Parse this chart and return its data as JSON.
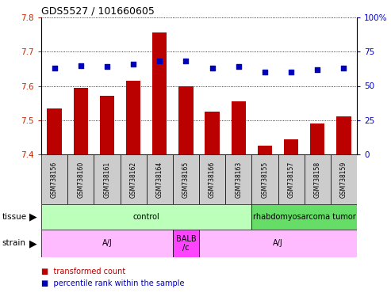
{
  "title": "GDS5527 / 101660605",
  "samples": [
    "GSM738156",
    "GSM738160",
    "GSM738161",
    "GSM738162",
    "GSM738164",
    "GSM738165",
    "GSM738166",
    "GSM738163",
    "GSM738155",
    "GSM738157",
    "GSM738158",
    "GSM738159"
  ],
  "bar_values": [
    7.535,
    7.595,
    7.57,
    7.615,
    7.755,
    7.6,
    7.525,
    7.555,
    7.425,
    7.445,
    7.49,
    7.51
  ],
  "percentile_values": [
    63,
    65,
    64,
    66,
    68,
    68,
    63,
    64,
    60,
    60,
    62,
    63
  ],
  "ylim_left": [
    7.4,
    7.8
  ],
  "ylim_right": [
    0,
    100
  ],
  "yticks_left": [
    7.4,
    7.5,
    7.6,
    7.7,
    7.8
  ],
  "yticks_right": [
    0,
    25,
    50,
    75,
    100
  ],
  "bar_color": "#bb0000",
  "dot_color": "#0000bb",
  "bar_width": 0.55,
  "tissue_groups": [
    {
      "label": "control",
      "start": 0,
      "end": 8,
      "color": "#bbffbb"
    },
    {
      "label": "rhabdomyosarcoma tumor",
      "start": 8,
      "end": 12,
      "color": "#66dd66"
    }
  ],
  "strain_groups": [
    {
      "label": "A/J",
      "start": 0,
      "end": 5,
      "color": "#ffbbff"
    },
    {
      "label": "BALB\n/c",
      "start": 5,
      "end": 6,
      "color": "#ff44ff"
    },
    {
      "label": "A/J",
      "start": 6,
      "end": 12,
      "color": "#ffbbff"
    }
  ],
  "legend_items": [
    {
      "color": "#bb0000",
      "label": "transformed count"
    },
    {
      "color": "#0000bb",
      "label": "percentile rank within the sample"
    }
  ],
  "ylabel_left_color": "#cc2200",
  "ylabel_right_color": "#0000cc",
  "grid_color": "black",
  "background_color": "white",
  "tick_label_bg": "#cccccc",
  "fig_width": 4.93,
  "fig_height": 3.84,
  "fig_dpi": 100
}
